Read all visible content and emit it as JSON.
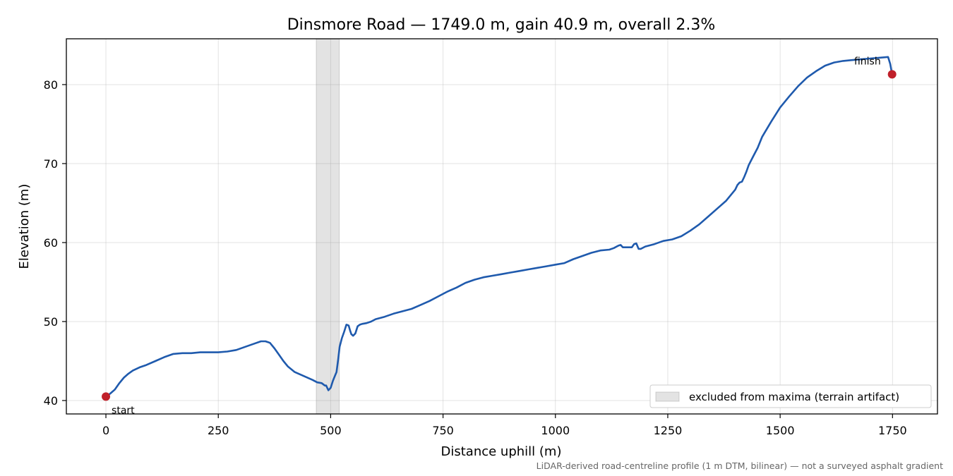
{
  "chart_data": {
    "type": "line",
    "title": "Dinsmore Road — 1749.0 m, gain 40.9 m, overall 2.3%",
    "xlabel": "Distance uphill (m)",
    "ylabel": "Elevation (m)",
    "xlim": [
      -88,
      1850
    ],
    "ylim": [
      38.3,
      85.8
    ],
    "xticks": [
      0,
      250,
      500,
      750,
      1000,
      1250,
      1500,
      1750
    ],
    "yticks": [
      40,
      50,
      60,
      70,
      80
    ],
    "grid": true,
    "line_color": "#1f5aad",
    "marker_color": "#c0202a",
    "series": [
      {
        "x": [
          0,
          10,
          20,
          30,
          40,
          50,
          60,
          75,
          90,
          110,
          130,
          150,
          170,
          190,
          210,
          230,
          250,
          270,
          290,
          310,
          330,
          345,
          355,
          365,
          375,
          385,
          395,
          405,
          420,
          440,
          460,
          470,
          480,
          487,
          490,
          495,
          500,
          505,
          510,
          513,
          517,
          520,
          525,
          530,
          535,
          540,
          543,
          546,
          550,
          555,
          560,
          565,
          570,
          580,
          590,
          600,
          620,
          640,
          660,
          680,
          700,
          720,
          740,
          760,
          780,
          800,
          820,
          840,
          860,
          880,
          900,
          920,
          940,
          960,
          980,
          1000,
          1020,
          1040,
          1060,
          1080,
          1100,
          1120,
          1130,
          1140,
          1145,
          1150,
          1160,
          1170,
          1175,
          1180,
          1185,
          1190,
          1200,
          1220,
          1240,
          1260,
          1280,
          1300,
          1320,
          1340,
          1360,
          1380,
          1400,
          1405,
          1410,
          1415,
          1420,
          1425,
          1430,
          1440,
          1450,
          1460,
          1480,
          1500,
          1520,
          1540,
          1560,
          1580,
          1600,
          1620,
          1640,
          1660,
          1680,
          1700,
          1720,
          1740,
          1745,
          1749
        ],
        "y": [
          40.5,
          40.9,
          41.4,
          42.2,
          42.9,
          43.4,
          43.8,
          44.2,
          44.5,
          45.0,
          45.5,
          45.9,
          46.0,
          46.0,
          46.1,
          46.1,
          46.1,
          46.2,
          46.4,
          46.8,
          47.2,
          47.5,
          47.5,
          47.3,
          46.6,
          45.8,
          45.0,
          44.3,
          43.6,
          43.1,
          42.6,
          42.3,
          42.2,
          41.9,
          41.9,
          41.3,
          41.6,
          42.5,
          43.2,
          43.6,
          45.3,
          46.8,
          47.9,
          48.7,
          49.6,
          49.5,
          48.9,
          48.4,
          48.2,
          48.5,
          49.4,
          49.6,
          49.7,
          49.8,
          50.0,
          50.3,
          50.6,
          51.0,
          51.3,
          51.6,
          52.1,
          52.6,
          53.2,
          53.8,
          54.3,
          54.9,
          55.3,
          55.6,
          55.8,
          56.0,
          56.2,
          56.4,
          56.6,
          56.8,
          57.0,
          57.2,
          57.4,
          57.9,
          58.3,
          58.7,
          59.0,
          59.1,
          59.3,
          59.6,
          59.7,
          59.4,
          59.4,
          59.4,
          59.8,
          59.9,
          59.2,
          59.2,
          59.5,
          59.8,
          60.2,
          60.4,
          60.8,
          61.5,
          62.3,
          63.3,
          64.3,
          65.3,
          66.7,
          67.3,
          67.6,
          67.7,
          68.3,
          69.0,
          69.8,
          70.9,
          72.0,
          73.4,
          75.3,
          77.1,
          78.5,
          79.8,
          80.9,
          81.7,
          82.4,
          82.8,
          83.0,
          83.1,
          83.2,
          83.3,
          83.4,
          83.5,
          82.6,
          81.3
        ]
      }
    ],
    "shaded_region": {
      "x": [
        468,
        519
      ],
      "label": "excluded from maxima (terrain artifact)"
    },
    "annotations": [
      {
        "text": "start",
        "x": 0,
        "y": 40.5
      },
      {
        "text": "finish",
        "x": 1749,
        "y": 81.3
      }
    ],
    "legend_position": "lower right",
    "footnote": "LiDAR-derived road-centreline profile (1 m DTM, bilinear) — not a surveyed asphalt gradient"
  }
}
